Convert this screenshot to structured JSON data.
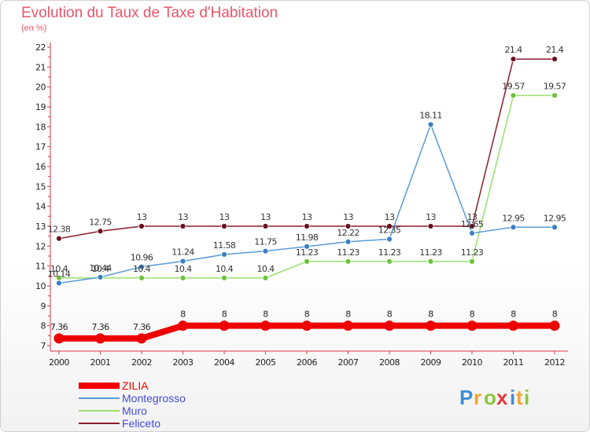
{
  "chart_data": {
    "type": "line",
    "title": "Evolution du Taux de Taxe d'Habitation",
    "subtitle": "(en %)",
    "x": [
      "2000",
      "2001",
      "2002",
      "2003",
      "2004",
      "2005",
      "2006",
      "2007",
      "2008",
      "2009",
      "2010",
      "2011",
      "2012"
    ],
    "ylim": [
      7,
      22
    ],
    "yticks": [
      7,
      8,
      9,
      10,
      11,
      12,
      13,
      14,
      15,
      16,
      17,
      18,
      19,
      20,
      21,
      22
    ],
    "grid": false,
    "legend": "bottom-left",
    "series": [
      {
        "name": "ZILIA",
        "color": "#ee0000",
        "values": [
          7.36,
          7.36,
          7.36,
          8,
          8,
          8,
          8,
          8,
          8,
          8,
          8,
          8,
          8
        ],
        "labels": [
          "7.36",
          "7.36",
          "7.36",
          "8",
          "8",
          "8",
          "8",
          "8",
          "8",
          "8",
          "8",
          "8",
          "8"
        ]
      },
      {
        "name": "Montegrosso",
        "color": "#5b9bd5",
        "marker": "#3a7fc1",
        "values": [
          10.14,
          10.44,
          10.96,
          11.24,
          11.58,
          11.75,
          11.98,
          12.22,
          12.35,
          18.11,
          12.65,
          12.95,
          12.95
        ],
        "labels": [
          "10.14",
          "10.44",
          "10.96",
          "11.24",
          "11.58",
          "11.75",
          "11.98",
          "12.22",
          "12.35",
          "18.11",
          "12.65",
          "12.95",
          "12.95"
        ]
      },
      {
        "name": "Muro",
        "color": "#99e06e",
        "marker": "#6cc23a",
        "values": [
          10.4,
          10.4,
          10.4,
          10.4,
          10.4,
          10.4,
          11.23,
          11.23,
          11.23,
          11.23,
          11.23,
          19.57,
          19.57
        ],
        "labels": [
          "10.4",
          "10.4",
          "10.4",
          "10.4",
          "10.4",
          "10.4",
          "11.23",
          "11.23",
          "11.23",
          "11.23",
          "11.23",
          "19.57",
          "19.57"
        ]
      },
      {
        "name": "Feliceto",
        "color": "#8b1c2e",
        "marker": "#6b0f20",
        "values": [
          12.38,
          12.75,
          13,
          13,
          13,
          13,
          13,
          13,
          13,
          13,
          13,
          21.4,
          21.4
        ],
        "labels": [
          "12.38",
          "12.75",
          "13",
          "13",
          "13",
          "13",
          "13",
          "13",
          "13",
          "13",
          "13",
          "21.4",
          "21.4"
        ]
      }
    ]
  },
  "brand": {
    "letters": [
      "P",
      "r",
      "o",
      "x",
      "i",
      "t",
      "i"
    ],
    "colors": [
      "#3d8ed6",
      "#f2a531",
      "#8cc63e",
      "#e8383d",
      "#3d8ed6",
      "#f2a531",
      "#8cc63e"
    ]
  }
}
